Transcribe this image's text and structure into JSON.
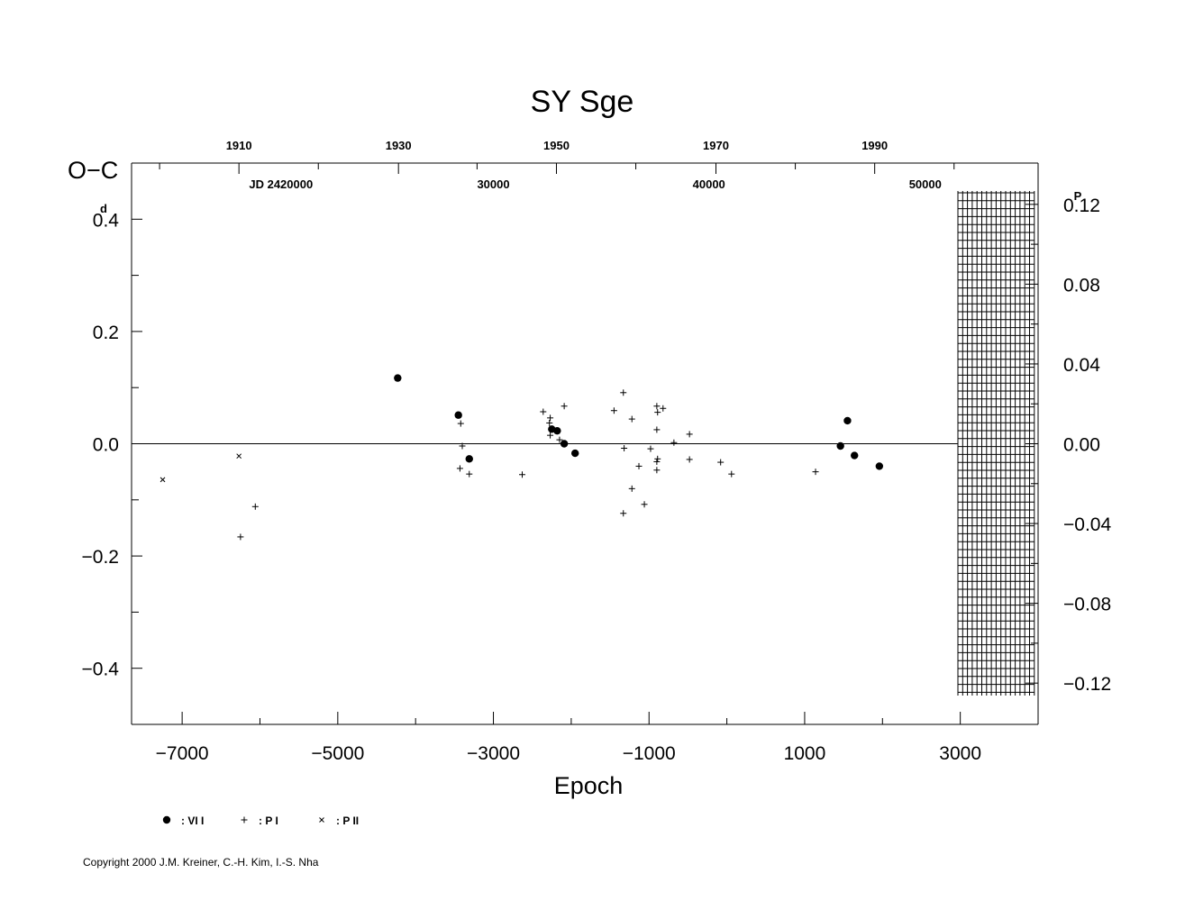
{
  "chart_data": {
    "type": "scatter",
    "title": "SY  Sge",
    "xlabel": "Epoch",
    "ylabel": "O−C",
    "ylabel_unit": "d",
    "y2_unit": "P",
    "xlim": [
      -7650,
      4000
    ],
    "ylim": [
      -0.5,
      0.5
    ],
    "y2lim": [
      -0.1407,
      0.1407
    ],
    "x_ticks": [
      -7000,
      -5000,
      -3000,
      -1000,
      1000,
      3000
    ],
    "x_tick_labels": [
      "−7000",
      "−5000",
      "−3000",
      "−1000",
      "1000",
      "3000"
    ],
    "y_ticks": [
      0.4,
      0.2,
      0.0,
      -0.2,
      -0.4
    ],
    "y_tick_labels": [
      "0.4",
      "0.2",
      "0.0",
      "−0.2",
      "−0.4"
    ],
    "y2_ticks": [
      0.12,
      0.08,
      0.04,
      0.0,
      -0.04,
      -0.08,
      -0.12
    ],
    "y2_tick_labels": [
      "0.12",
      "0.08",
      "0.04",
      "0.00",
      "−0.04",
      "−0.08",
      "−0.12"
    ],
    "top_year_axis": {
      "labels": [
        "1910",
        "1930",
        "1950",
        "1970",
        "1990"
      ],
      "label_epochs": [
        -6270,
        -4220,
        -2190,
        -140,
        1900
      ],
      "minor_epochs": [
        -7290,
        -5250,
        -3210,
        -1170,
        880,
        2920
      ]
    },
    "top_jd_axis": {
      "labels": [
        "JD  2420000",
        "30000",
        "40000",
        "50000"
      ],
      "label_epochs": [
        -5730,
        -3000,
        -230,
        2550
      ]
    },
    "reference_line": 0.0,
    "series": [
      {
        "name": "VI",
        "marker": "dot",
        "points": [
          [
            -4230,
            0.117
          ],
          [
            -3450,
            0.051
          ],
          [
            -3310,
            -0.027
          ],
          [
            -2250,
            0.026
          ],
          [
            -2180,
            0.023
          ],
          [
            -2090,
            0.0
          ],
          [
            -1950,
            -0.017
          ],
          [
            1460,
            -0.004
          ],
          [
            1550,
            0.041
          ],
          [
            1640,
            -0.021
          ],
          [
            1960,
            -0.04
          ]
        ]
      },
      {
        "name": "PI",
        "marker": "plus",
        "points": [
          [
            -6060,
            -0.112
          ],
          [
            -3420,
            0.036
          ],
          [
            -3400,
            -0.004
          ],
          [
            -3430,
            -0.044
          ],
          [
            -3310,
            -0.054
          ],
          [
            -2630,
            -0.055
          ],
          [
            -2360,
            0.057
          ],
          [
            -2270,
            0.046
          ],
          [
            -2280,
            0.037
          ],
          [
            -2270,
            0.015
          ],
          [
            -2150,
            0.007
          ],
          [
            -2090,
            0.067
          ],
          [
            -1450,
            0.059
          ],
          [
            -1330,
            0.091
          ],
          [
            -1320,
            -0.008
          ],
          [
            -1330,
            -0.124
          ],
          [
            -1220,
            0.044
          ],
          [
            -1220,
            -0.08
          ],
          [
            -1130,
            -0.04
          ],
          [
            -1060,
            -0.108
          ],
          [
            -980,
            -0.009
          ],
          [
            -900,
            0.067
          ],
          [
            -890,
            0.056
          ],
          [
            -900,
            0.025
          ],
          [
            -890,
            -0.027
          ],
          [
            -900,
            -0.032
          ],
          [
            -900,
            -0.047
          ],
          [
            -820,
            0.063
          ],
          [
            -680,
            0.002
          ],
          [
            -480,
            0.017
          ],
          [
            -480,
            -0.028
          ],
          [
            -80,
            -0.033
          ],
          [
            60,
            -0.054
          ],
          [
            1140,
            -0.05
          ],
          [
            -6250,
            -0.166
          ]
        ]
      },
      {
        "name": "PII",
        "marker": "cross",
        "points": [
          [
            -7250,
            -0.064
          ],
          [
            -6270,
            -0.022
          ]
        ]
      }
    ],
    "legend": [
      {
        "symbol": "dot",
        "label": ": VI I"
      },
      {
        "symbol": "plus",
        "label": ": P I"
      },
      {
        "symbol": "cross",
        "label": ": P II"
      }
    ]
  },
  "copyright": "Copyright 2000 J.M. Kreiner, C.-H. Kim, I.-S. Nha"
}
